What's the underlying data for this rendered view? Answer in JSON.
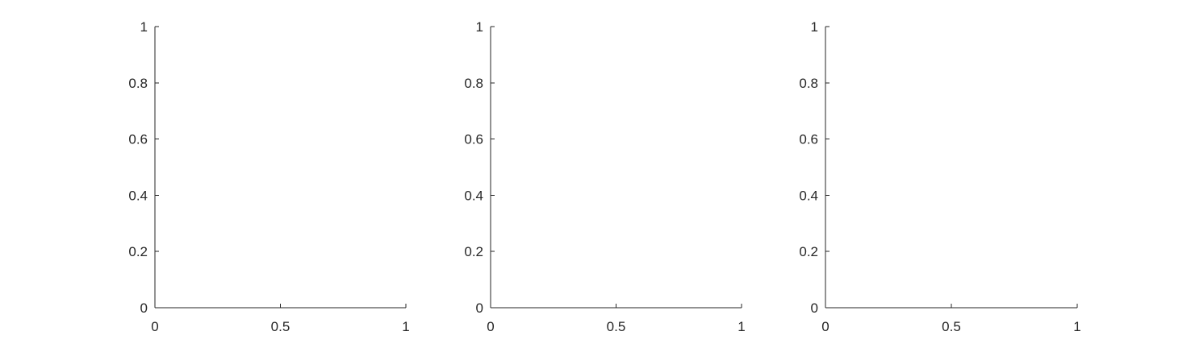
{
  "chart_data": [
    {
      "type": "line",
      "title": "",
      "xlabel": "",
      "ylabel": "",
      "xlim": [
        0,
        1
      ],
      "ylim": [
        0,
        1
      ],
      "x_ticks": [
        "0",
        "0.5",
        "1"
      ],
      "y_ticks": [
        "0",
        "0.2",
        "0.4",
        "0.6",
        "0.8",
        "1"
      ],
      "series": [],
      "grid": false,
      "box": false
    },
    {
      "type": "line",
      "title": "",
      "xlabel": "",
      "ylabel": "",
      "xlim": [
        0,
        1
      ],
      "ylim": [
        0,
        1
      ],
      "x_ticks": [
        "0",
        "0.5",
        "1"
      ],
      "y_ticks": [
        "0",
        "0.2",
        "0.4",
        "0.6",
        "0.8",
        "1"
      ],
      "series": [],
      "grid": false,
      "box": false
    },
    {
      "type": "line",
      "title": "",
      "xlabel": "",
      "ylabel": "",
      "xlim": [
        0,
        1
      ],
      "ylim": [
        0,
        1
      ],
      "x_ticks": [
        "0",
        "0.5",
        "1"
      ],
      "y_ticks": [
        "0",
        "0.2",
        "0.4",
        "0.6",
        "0.8",
        "1"
      ],
      "series": [],
      "grid": false,
      "box": false
    }
  ]
}
